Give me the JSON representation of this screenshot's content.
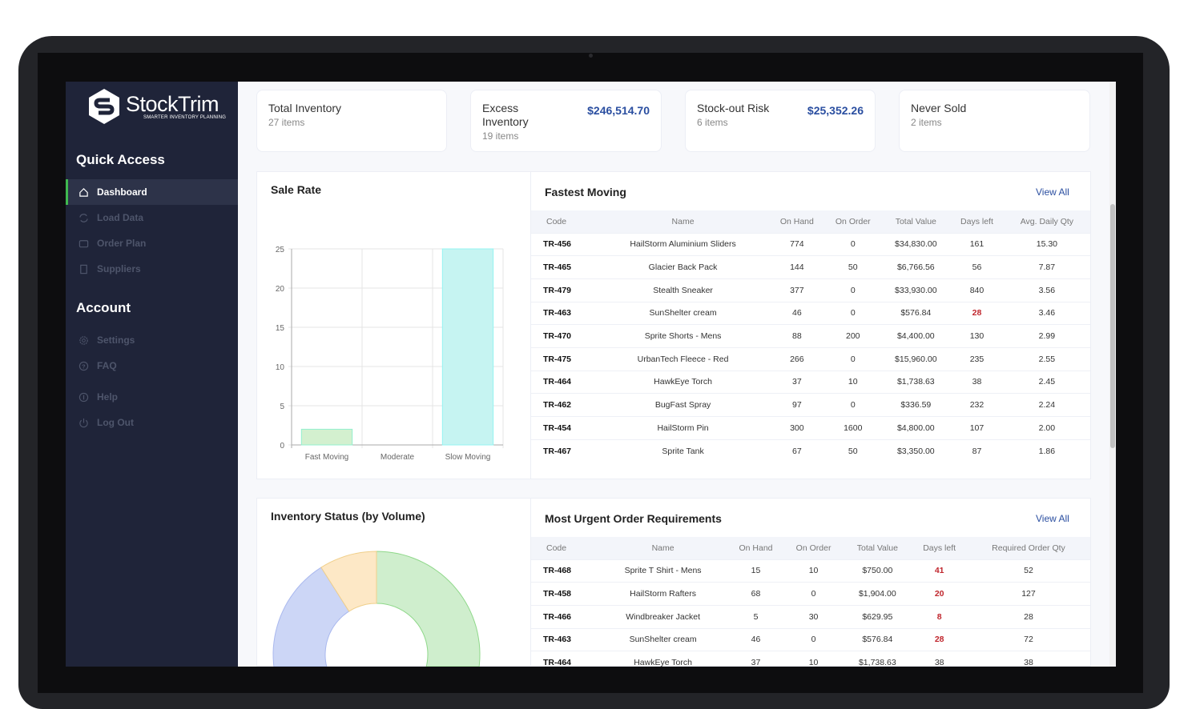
{
  "brand": {
    "name": "StockTrim",
    "tagline": "SMARTER INVENTORY PLANNING"
  },
  "sidebar": {
    "quick_access": "Quick Access",
    "items": [
      {
        "label": "Dashboard",
        "icon": "home-icon",
        "active": true
      },
      {
        "label": "Load Data",
        "icon": "refresh-icon"
      },
      {
        "label": "Order Plan",
        "icon": "wallet-icon"
      },
      {
        "label": "Suppliers",
        "icon": "building-icon"
      }
    ],
    "account": "Account",
    "account_items": [
      {
        "label": "Settings",
        "icon": "gear-icon"
      },
      {
        "label": "FAQ",
        "icon": "question-icon"
      },
      {
        "label": "Help",
        "icon": "info-icon"
      },
      {
        "label": "Log Out",
        "icon": "power-icon"
      }
    ]
  },
  "cards": [
    {
      "title": "Total Inventory",
      "sub": "27 items",
      "value": ""
    },
    {
      "title": "Excess Inventory",
      "sub": "19 items",
      "value": "$246,514.70"
    },
    {
      "title": "Stock-out Risk",
      "sub": "6 items",
      "value": "$25,352.26"
    },
    {
      "title": "Never Sold",
      "sub": "2 items",
      "value": ""
    }
  ],
  "chart_data": [
    {
      "type": "bar",
      "title": "Sale Rate",
      "categories": [
        "Fast Moving",
        "Moderate",
        "Slow Moving"
      ],
      "values": [
        2,
        0,
        25
      ],
      "ylim": [
        0,
        25
      ],
      "yticks": [
        "0",
        "5",
        "10",
        "15",
        "20",
        "25"
      ],
      "grid": true,
      "colors": [
        "#d3f0cf",
        "#f6e3bd",
        "#c6f4f2"
      ]
    },
    {
      "type": "pie",
      "title": "Inventory Status (by Volume)",
      "donut": true,
      "values": [
        0.29,
        0.62,
        0.09
      ],
      "colors": [
        "#cfeecd",
        "#ccd6f6",
        "#fde8c6"
      ]
    }
  ],
  "fastest": {
    "title": "Fastest Moving",
    "view_all": "View All",
    "columns": [
      "Code",
      "Name",
      "On Hand",
      "On Order",
      "Total Value",
      "Days left",
      "Avg. Daily Qty"
    ],
    "rows": [
      [
        "TR-456",
        "HailStorm Aluminium Sliders",
        "774",
        "0",
        "$34,830.00",
        "161",
        "15.30"
      ],
      [
        "TR-465",
        "Glacier Back Pack",
        "144",
        "50",
        "$6,766.56",
        "56",
        "7.87"
      ],
      [
        "TR-479",
        "Stealth Sneaker",
        "377",
        "0",
        "$33,930.00",
        "840",
        "3.56"
      ],
      [
        "TR-463",
        "SunShelter cream",
        "46",
        "0",
        "$576.84",
        "28",
        "3.46"
      ],
      [
        "TR-470",
        "Sprite Shorts - Mens",
        "88",
        "200",
        "$4,400.00",
        "130",
        "2.99"
      ],
      [
        "TR-475",
        "UrbanTech Fleece - Red",
        "266",
        "0",
        "$15,960.00",
        "235",
        "2.55"
      ],
      [
        "TR-464",
        "HawkEye Torch",
        "37",
        "10",
        "$1,738.63",
        "38",
        "2.45"
      ],
      [
        "TR-462",
        "BugFast Spray",
        "97",
        "0",
        "$336.59",
        "232",
        "2.24"
      ],
      [
        "TR-454",
        "HailStorm Pin",
        "300",
        "1600",
        "$4,800.00",
        "107",
        "2.00"
      ],
      [
        "TR-467",
        "Sprite Tank",
        "67",
        "50",
        "$3,350.00",
        "87",
        "1.86"
      ]
    ],
    "red_rows": [
      3
    ]
  },
  "urgent": {
    "title": "Most Urgent Order Requirements",
    "view_all": "View All",
    "columns": [
      "Code",
      "Name",
      "On Hand",
      "On Order",
      "Total Value",
      "Days left",
      "Required Order Qty"
    ],
    "rows": [
      [
        "TR-468",
        "Sprite T Shirt - Mens",
        "15",
        "10",
        "$750.00",
        "41",
        "52"
      ],
      [
        "TR-458",
        "HailStorm Rafters",
        "68",
        "0",
        "$1,904.00",
        "20",
        "127"
      ],
      [
        "TR-466",
        "Windbreaker Jacket",
        "5",
        "30",
        "$629.95",
        "8",
        "28"
      ],
      [
        "TR-463",
        "SunShelter cream",
        "46",
        "0",
        "$576.84",
        "28",
        "72"
      ],
      [
        "TR-464",
        "HawkEye Torch",
        "37",
        "10",
        "$1,738.63",
        "38",
        "38"
      ]
    ],
    "red_rows": [
      0,
      1,
      2,
      3
    ]
  }
}
